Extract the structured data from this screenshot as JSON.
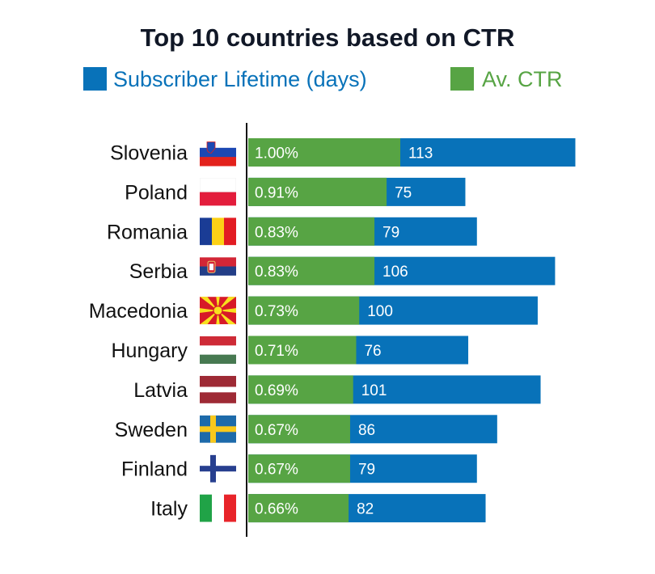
{
  "chart_data": {
    "type": "bar",
    "orientation": "horizontal",
    "title": "Top 10 countries based on CTR",
    "legend_placement": "top",
    "grid": false,
    "categories": [
      "Slovenia",
      "Poland",
      "Romania",
      "Serbia",
      "Macedonia",
      "Hungary",
      "Latvia",
      "Sweden",
      "Finland",
      "Italy"
    ],
    "flag_icons": [
      "flag-slovenia-icon",
      "flag-poland-icon",
      "flag-romania-icon",
      "flag-serbia-icon",
      "flag-macedonia-icon",
      "flag-hungary-icon",
      "flag-latvia-icon",
      "flag-sweden-icon",
      "flag-finland-icon",
      "flag-italy-icon"
    ],
    "series": [
      {
        "name": "Subscriber Lifetime (days)",
        "color": "#0872b9",
        "values": [
          113,
          75,
          79,
          106,
          100,
          76,
          101,
          86,
          79,
          82
        ]
      },
      {
        "name": "Av. CTR",
        "color": "#57a444",
        "values": [
          1.0,
          0.91,
          0.83,
          0.83,
          0.73,
          0.71,
          0.69,
          0.67,
          0.67,
          0.66
        ],
        "labels": [
          "1.00%",
          "0.91%",
          "0.83%",
          "0.83%",
          "0.73%",
          "0.71%",
          "0.69%",
          "0.67%",
          "0.67%",
          "0.66%"
        ]
      }
    ],
    "title_color": "#111827"
  }
}
